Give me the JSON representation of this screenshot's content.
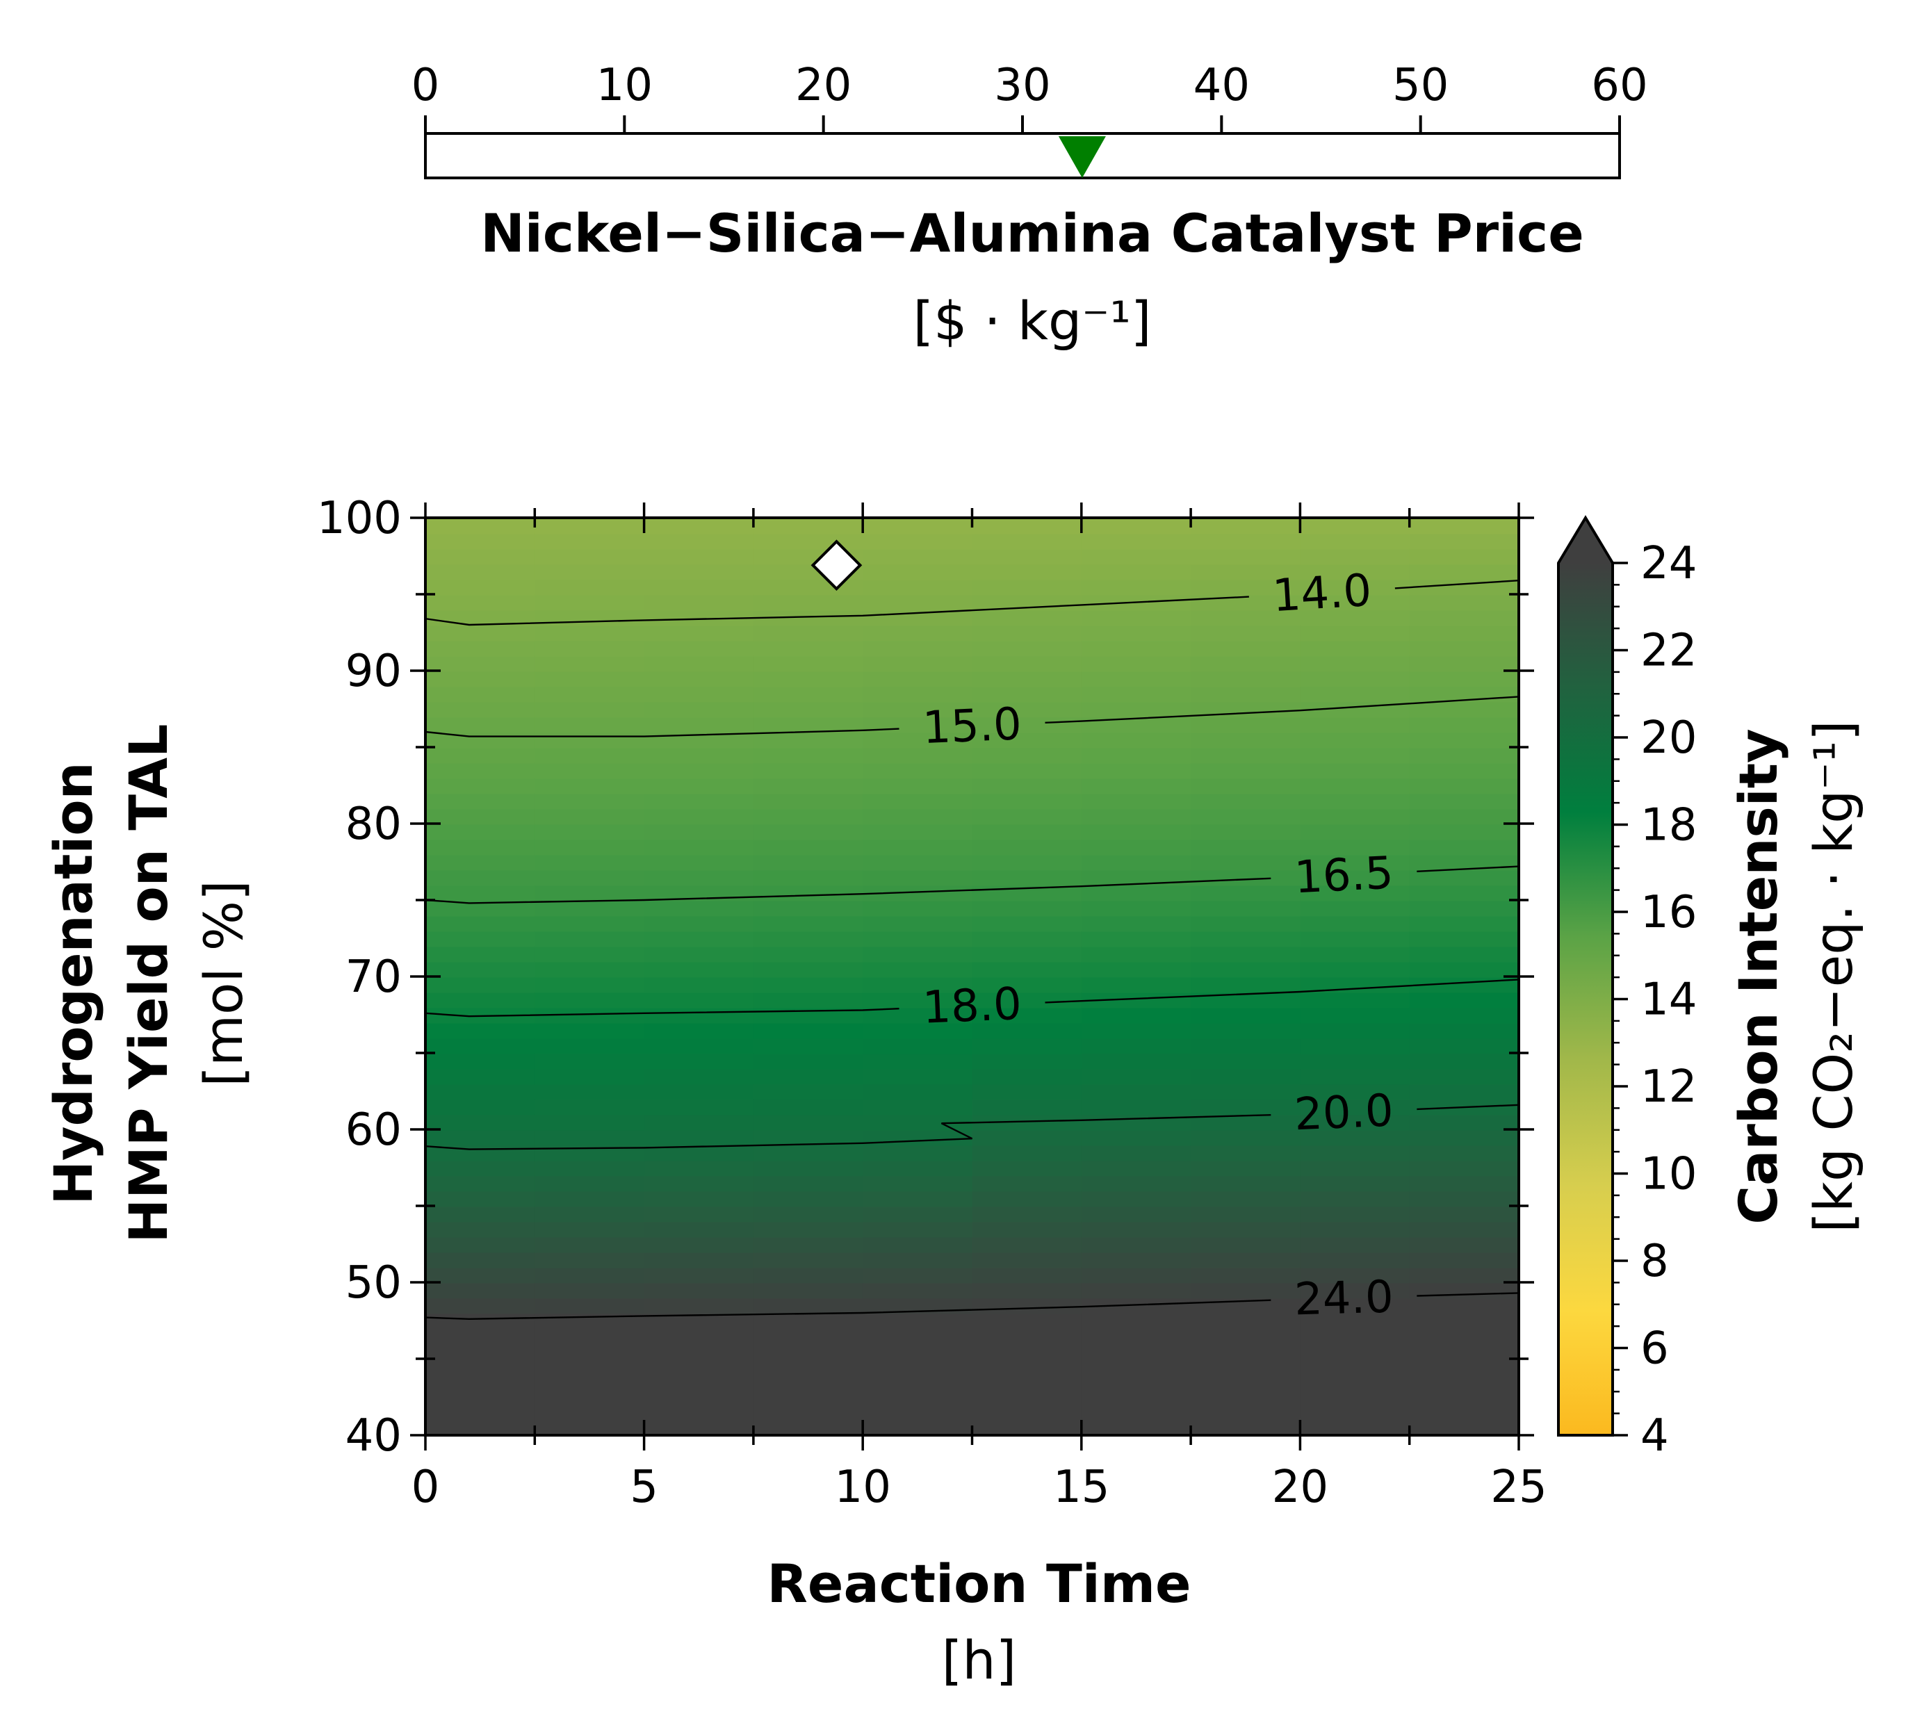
{
  "chart_data": [
    {
      "type": "slider",
      "title": "Nickel−Silica−Alumina Catalyst Price",
      "unit_label": "[$ · kg⁻¹]",
      "range": [
        0,
        60
      ],
      "ticks": [
        0,
        10,
        20,
        30,
        40,
        50,
        60
      ],
      "tick_labels": [
        "0",
        "10",
        "20",
        "30",
        "40",
        "50",
        "60"
      ],
      "marker_value": 33,
      "marker_color": "#007f00"
    },
    {
      "type": "heatmap",
      "subtype": "filled-contour",
      "xlabel": "Reaction Time",
      "xunit": "[h]",
      "ylabel_line1": "Hydrogenation",
      "ylabel_line2": "HMP Yield on TAL",
      "yunit": "[mol %]",
      "xlim": [
        0,
        25
      ],
      "ylim": [
        40,
        100
      ],
      "xticks": [
        0,
        5,
        10,
        15,
        20,
        25
      ],
      "xtick_labels": [
        "0",
        "5",
        "10",
        "15",
        "20",
        "25"
      ],
      "yticks": [
        40,
        50,
        60,
        70,
        80,
        90,
        100
      ],
      "ytick_labels": [
        "40",
        "50",
        "60",
        "70",
        "80",
        "90",
        "100"
      ],
      "grid": false,
      "contour_lines": [
        {
          "level": 14.0,
          "label": "14.0",
          "points": [
            [
              0,
              93.4
            ],
            [
              1,
              93.0
            ],
            [
              5,
              93.3
            ],
            [
              10,
              93.6
            ],
            [
              15,
              94.3
            ],
            [
              20,
              95.0
            ],
            [
              25,
              95.9
            ]
          ]
        },
        {
          "level": 15.0,
          "label": "15.0",
          "points": [
            [
              0,
              86.0
            ],
            [
              1,
              85.7
            ],
            [
              5,
              85.7
            ],
            [
              10,
              86.1
            ],
            [
              15,
              86.7
            ],
            [
              20,
              87.4
            ],
            [
              25,
              88.3
            ]
          ]
        },
        {
          "level": 16.5,
          "label": "16.5",
          "points": [
            [
              0,
              75.0
            ],
            [
              1,
              74.8
            ],
            [
              5,
              75.0
            ],
            [
              10,
              75.4
            ],
            [
              15,
              75.9
            ],
            [
              20,
              76.5
            ],
            [
              25,
              77.2
            ]
          ]
        },
        {
          "level": 18.0,
          "label": "18.0",
          "points": [
            [
              0,
              67.6
            ],
            [
              1,
              67.4
            ],
            [
              5,
              67.6
            ],
            [
              10,
              67.8
            ],
            [
              15,
              68.4
            ],
            [
              20,
              69.0
            ],
            [
              25,
              69.8
            ]
          ]
        },
        {
          "level": 20.0,
          "label": "20.0",
          "points": [
            [
              0,
              58.9
            ],
            [
              1,
              58.7
            ],
            [
              5,
              58.8
            ],
            [
              10,
              59.1
            ],
            [
              12.5,
              59.4
            ],
            [
              11.8,
              60.4
            ],
            [
              15,
              60.6
            ],
            [
              20,
              61.0
            ],
            [
              25,
              61.6
            ]
          ]
        },
        {
          "level": 24.0,
          "label": "24.0",
          "points": [
            [
              0,
              47.7
            ],
            [
              1,
              47.6
            ],
            [
              5,
              47.8
            ],
            [
              10,
              48.0
            ],
            [
              15,
              48.4
            ],
            [
              20,
              48.9
            ],
            [
              25,
              49.3
            ]
          ]
        }
      ],
      "marker": {
        "x": 9.4,
        "y": 96.9,
        "shape": "diamond",
        "fill": "#ffffff"
      },
      "colorbar": {
        "label": "Carbon Intensity",
        "unit_label": "[kg CO₂−eq. · kg⁻¹]",
        "range": [
          4,
          24
        ],
        "ticks": [
          4,
          6,
          8,
          10,
          12,
          14,
          16,
          18,
          20,
          22,
          24
        ],
        "tick_labels": [
          "4",
          "6",
          "8",
          "10",
          "12",
          "14",
          "16",
          "18",
          "20",
          "22",
          "24"
        ],
        "extend": "max",
        "colors": [
          "#fbb91f",
          "#fcd83f",
          "#d7ce4e",
          "#a2b84a",
          "#5ba346",
          "#007f3e",
          "#21623f",
          "#3f3f3f"
        ]
      }
    }
  ]
}
